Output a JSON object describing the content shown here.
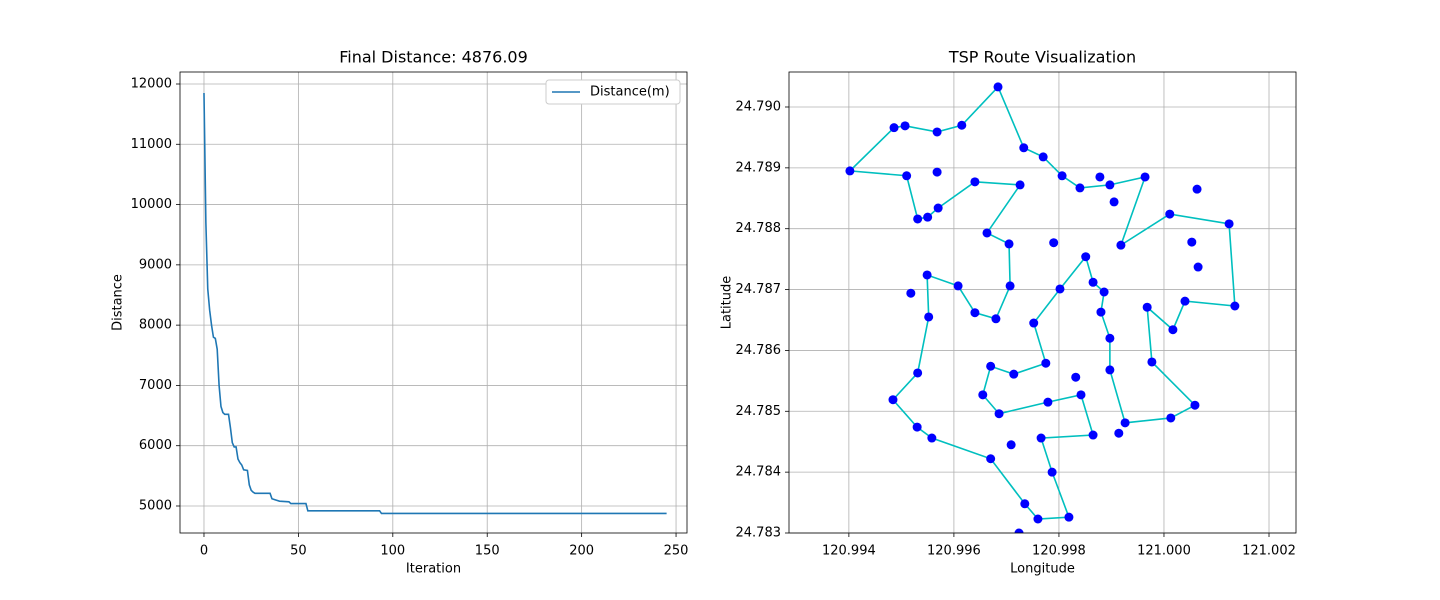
{
  "chart_data": [
    {
      "type": "line",
      "title": "Final Distance: 4876.09",
      "x_label": "Iteration",
      "y_label": "Distance",
      "x": [
        0,
        1,
        2,
        3,
        4,
        5,
        6,
        7,
        8,
        9,
        10,
        11,
        13,
        14,
        15,
        16,
        17,
        18,
        19,
        20,
        21,
        23,
        24,
        25,
        26,
        27,
        35,
        36,
        38,
        40,
        45,
        46,
        54,
        55,
        93,
        94,
        245
      ],
      "series": [
        {
          "name": "Distance(m)",
          "color": "#1f77b4",
          "values": [
            11850,
            9700,
            8600,
            8250,
            8000,
            7800,
            7780,
            7600,
            7000,
            6650,
            6550,
            6520,
            6520,
            6300,
            6050,
            5980,
            5980,
            5780,
            5720,
            5680,
            5600,
            5590,
            5350,
            5260,
            5230,
            5210,
            5210,
            5120,
            5100,
            5080,
            5070,
            5040,
            5040,
            4920,
            4920,
            4876.09,
            4876.09
          ]
        }
      ],
      "xlim": [
        -12.7,
        255.8
      ],
      "ylim": [
        4552,
        12199
      ],
      "xticks": [
        0,
        50,
        100,
        150,
        200,
        250
      ],
      "yticks": [
        5000,
        6000,
        7000,
        8000,
        9000,
        10000,
        11000,
        12000
      ],
      "grid": true,
      "legend": "upper right"
    },
    {
      "type": "scatter",
      "title": "TSP Route Visualization",
      "x_label": "Longitude",
      "y_label": "Latitude",
      "series": [
        {
          "mode": "line",
          "color": "#00bfbf",
          "x": [
            120.99684,
            120.99733,
            120.9977,
            120.99806,
            120.9984,
            120.99897,
            120.99964,
            120.99918,
            121.00011,
            121.00124,
            121.00135,
            121.0004,
            121.00017,
            120.99968,
            120.99977,
            121.00059,
            121.00013,
            120.99926,
            120.99897,
            120.99897,
            120.9988,
            120.99886,
            120.99865,
            120.99851,
            120.99802,
            120.99752,
            120.99775,
            120.99714,
            120.9967,
            120.99655,
            120.99686,
            120.99779,
            120.99842,
            120.99865,
            120.99766,
            120.99787,
            120.99819,
            120.9976,
            120.99735,
            120.9967,
            120.99558,
            120.9953,
            120.99484,
            120.99531,
            120.99552,
            120.99549,
            120.99608,
            120.9964,
            120.9968,
            120.99707,
            120.99705,
            120.99663,
            120.99726,
            120.9964,
            120.9957,
            120.9955,
            120.99531,
            120.9951,
            120.99402,
            120.99486,
            120.99507,
            120.99568,
            120.99615,
            120.99684
          ],
          "values": [
            24.79033,
            24.78933,
            24.78918,
            24.78887,
            24.78867,
            24.78872,
            24.78885,
            24.78773,
            24.78824,
            24.78808,
            24.78673,
            24.78681,
            24.78634,
            24.78671,
            24.78581,
            24.7851,
            24.78489,
            24.78481,
            24.78568,
            24.7862,
            24.78663,
            24.78696,
            24.78712,
            24.78754,
            24.78701,
            24.78645,
            24.78579,
            24.78561,
            24.78574,
            24.78527,
            24.78496,
            24.78515,
            24.78527,
            24.78461,
            24.78456,
            24.784,
            24.78326,
            24.78323,
            24.78348,
            24.78422,
            24.78456,
            24.78474,
            24.78519,
            24.78563,
            24.78655,
            24.78724,
            24.78706,
            24.78662,
            24.78652,
            24.78706,
            24.78775,
            24.78793,
            24.78872,
            24.78877,
            24.78834,
            24.78819,
            24.78816,
            24.78887,
            24.78895,
            24.78966,
            24.78969,
            24.78959,
            24.7897,
            24.79033
          ]
        },
        {
          "mode": "marker",
          "color": "#0000ff",
          "x": [
            120.99684,
            120.99733,
            120.9977,
            120.99806,
            120.9984,
            120.99897,
            120.99964,
            120.99918,
            121.00011,
            121.00124,
            121.00135,
            121.0004,
            121.00017,
            120.99968,
            120.99977,
            121.00059,
            121.00013,
            120.99926,
            120.99897,
            120.99897,
            120.9988,
            120.99886,
            120.99865,
            120.99851,
            120.99802,
            120.99752,
            120.99775,
            120.99714,
            120.9967,
            120.99655,
            120.99686,
            120.99779,
            120.99842,
            120.99865,
            120.99766,
            120.99787,
            120.99819,
            120.9976,
            120.99735,
            120.9967,
            120.99558,
            120.9953,
            120.99484,
            120.99531,
            120.99552,
            120.99549,
            120.99608,
            120.9964,
            120.9968,
            120.99707,
            120.99705,
            120.99663,
            120.99726,
            120.9964,
            120.9957,
            120.9955,
            120.99531,
            120.9951,
            120.99402,
            120.99486,
            120.99507,
            120.99568,
            120.99615,
            120.99568,
            120.99878,
            120.99905,
            121.00063,
            120.9979,
            121.00053,
            121.00065,
            120.99518,
            120.99832,
            120.99709,
            120.99914,
            120.99724
          ],
          "values": [
            24.79033,
            24.78933,
            24.78918,
            24.78887,
            24.78867,
            24.78872,
            24.78885,
            24.78773,
            24.78824,
            24.78808,
            24.78673,
            24.78681,
            24.78634,
            24.78671,
            24.78581,
            24.7851,
            24.78489,
            24.78481,
            24.78568,
            24.7862,
            24.78663,
            24.78696,
            24.78712,
            24.78754,
            24.78701,
            24.78645,
            24.78579,
            24.78561,
            24.78574,
            24.78527,
            24.78496,
            24.78515,
            24.78527,
            24.78461,
            24.78456,
            24.784,
            24.78326,
            24.78323,
            24.78348,
            24.78422,
            24.78456,
            24.78474,
            24.78519,
            24.78563,
            24.78655,
            24.78724,
            24.78706,
            24.78662,
            24.78652,
            24.78706,
            24.78775,
            24.78793,
            24.78872,
            24.78877,
            24.78834,
            24.78819,
            24.78816,
            24.78887,
            24.78895,
            24.78966,
            24.78969,
            24.78959,
            24.7897,
            24.78893,
            24.78885,
            24.78844,
            24.78865,
            24.78777,
            24.78778,
            24.78737,
            24.78694,
            24.78556,
            24.78445,
            24.78464,
            24.783
          ]
        }
      ],
      "xlim": [
        120.99286,
        121.002514
      ],
      "ylim": [
        24.783,
        24.790575
      ],
      "xticks": [
        120.994,
        120.996,
        120.998,
        {
          "value": 121,
          "label": "121.000"
        },
        121.002
      ],
      "yticks": [
        24.783,
        24.784,
        24.785,
        24.786,
        24.787,
        24.788,
        24.789,
        {
          "value": 24.79,
          "label": "24.790"
        }
      ],
      "grid": true
    }
  ]
}
